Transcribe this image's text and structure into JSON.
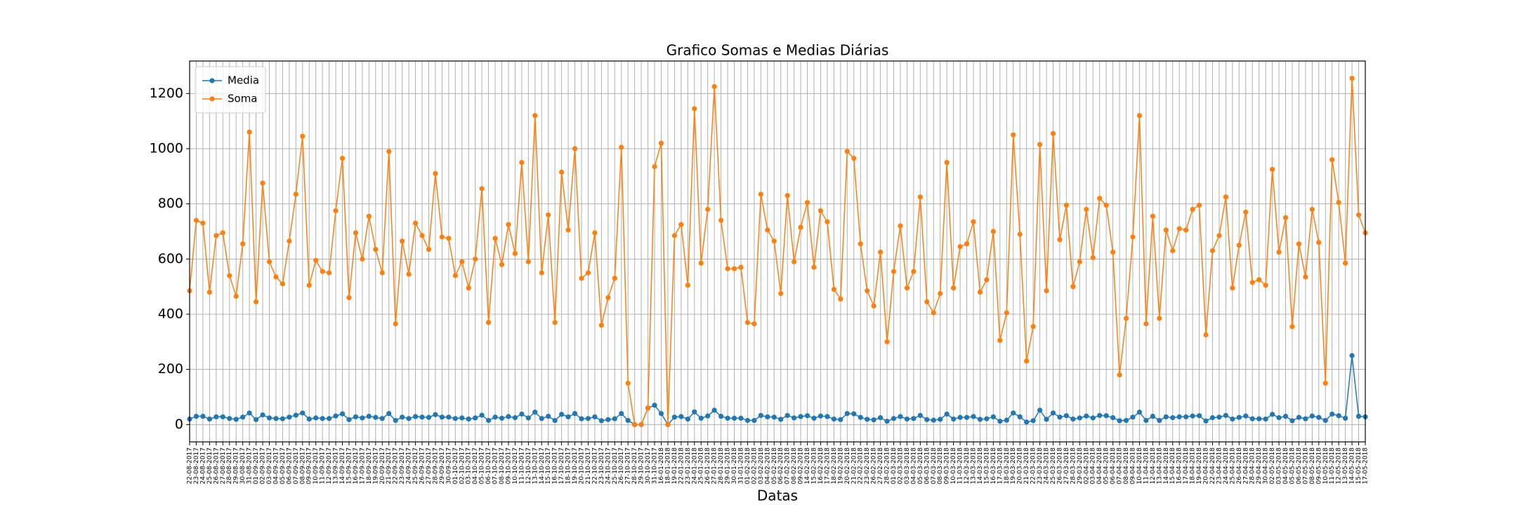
{
  "chart_data": {
    "type": "line",
    "title": "Grafico Somas e Medias Diárias",
    "xlabel": "Datas",
    "categories": [
      "22-08-2017",
      "23-08-2017",
      "24-08-2017",
      "25-08-2017",
      "26-08-2017",
      "27-08-2017",
      "28-08-2017",
      "29-08-2017",
      "30-08-2017",
      "31-08-2017",
      "01-09-2017",
      "02-09-2017",
      "03-09-2017",
      "04-09-2017",
      "05-09-2017",
      "06-09-2017",
      "07-09-2017",
      "08-09-2017",
      "09-09-2017",
      "10-09-2017",
      "11-09-2017",
      "12-09-2017",
      "13-09-2017",
      "14-09-2017",
      "15-09-2017",
      "16-09-2017",
      "17-09-2017",
      "18-09-2017",
      "19-09-2017",
      "20-09-2017",
      "21-09-2017",
      "22-09-2017",
      "23-09-2017",
      "24-09-2017",
      "25-09-2017",
      "26-09-2017",
      "27-09-2017",
      "28-09-2017",
      "29-09-2017",
      "30-09-2017",
      "01-10-2017",
      "02-10-2017",
      "03-10-2017",
      "04-10-2017",
      "05-10-2017",
      "06-10-2017",
      "07-10-2017",
      "08-10-2017",
      "09-10-2017",
      "10-10-2017",
      "11-10-2017",
      "12-10-2017",
      "13-10-2017",
      "14-10-2017",
      "15-10-2017",
      "16-10-2017",
      "17-10-2017",
      "18-10-2017",
      "19-10-2017",
      "20-10-2017",
      "21-10-2017",
      "22-10-2017",
      "23-10-2017",
      "24-10-2017",
      "25-10-2017",
      "26-10-2017",
      "27-10-2017",
      "28-10-2017",
      "29-10-2017",
      "30-10-2017",
      "31-10-2017",
      "16-01-2018",
      "18-01-2018",
      "19-01-2018",
      "22-01-2018",
      "23-01-2018",
      "24-01-2018",
      "25-01-2018",
      "26-01-2018",
      "27-01-2018",
      "28-01-2018",
      "29-01-2018",
      "30-01-2018",
      "31-01-2018",
      "01-02-2018",
      "02-02-2018",
      "03-02-2018",
      "04-02-2018",
      "05-02-2018",
      "06-02-2018",
      "07-02-2018",
      "08-02-2018",
      "09-02-2018",
      "14-02-2018",
      "15-02-2018",
      "16-02-2018",
      "17-02-2018",
      "18-02-2018",
      "19-02-2018",
      "20-02-2018",
      "21-02-2018",
      "22-02-2018",
      "23-02-2018",
      "26-02-2018",
      "27-02-2018",
      "28-02-2018",
      "01-03-2018",
      "02-03-2018",
      "03-03-2018",
      "04-03-2018",
      "05-03-2018",
      "06-03-2018",
      "07-03-2018",
      "08-03-2018",
      "09-03-2018",
      "10-03-2018",
      "11-03-2018",
      "12-03-2018",
      "13-03-2018",
      "14-03-2018",
      "15-03-2018",
      "16-03-2018",
      "17-03-2018",
      "18-03-2018",
      "19-03-2018",
      "20-03-2018",
      "21-03-2018",
      "22-03-2018",
      "23-03-2018",
      "24-03-2018",
      "25-03-2018",
      "26-03-2018",
      "27-03-2018",
      "28-03-2018",
      "29-03-2018",
      "02-04-2018",
      "03-04-2018",
      "04-04-2018",
      "05-04-2018",
      "06-04-2018",
      "07-04-2018",
      "08-04-2018",
      "09-04-2018",
      "10-04-2018",
      "11-04-2018",
      "12-04-2018",
      "13-04-2018",
      "14-04-2018",
      "15-04-2018",
      "16-04-2018",
      "17-04-2018",
      "18-04-2018",
      "19-04-2018",
      "20-04-2018",
      "22-04-2018",
      "23-04-2018",
      "24-04-2018",
      "25-04-2018",
      "26-04-2018",
      "27-04-2018",
      "28-04-2018",
      "29-04-2018",
      "30-04-2018",
      "02-05-2018",
      "03-05-2018",
      "04-05-2018",
      "05-05-2018",
      "06-05-2018",
      "07-05-2018",
      "08-05-2018",
      "09-05-2018",
      "10-05-2018",
      "11-05-2018",
      "12-05-2018",
      "13-05-2018",
      "14-05-2018",
      "15-05-2018",
      "17-05-2018"
    ],
    "series": [
      {
        "name": "Media",
        "color": "#1f77b4",
        "values": [
          20,
          30,
          30,
          20,
          28,
          28,
          22,
          19,
          27,
          42,
          18,
          35,
          24,
          22,
          21,
          27,
          34,
          42,
          20,
          24,
          22,
          22,
          31,
          39,
          18,
          28,
          24,
          30,
          26,
          22,
          40,
          15,
          27,
          22,
          29,
          27,
          26,
          36,
          27,
          27,
          22,
          24,
          20,
          24,
          34,
          15,
          27,
          23,
          29,
          25,
          38,
          24,
          45,
          22,
          30,
          15,
          37,
          28,
          40,
          21,
          22,
          28,
          14,
          18,
          21,
          40,
          15,
          0,
          0,
          60,
          70,
          40,
          0,
          27,
          29,
          20,
          46,
          23,
          31,
          52,
          30,
          23,
          23,
          23,
          15,
          15,
          33,
          28,
          27,
          19,
          33,
          24,
          29,
          32,
          23,
          31,
          29,
          20,
          18,
          40,
          39,
          26,
          19,
          17,
          25,
          12,
          22,
          29,
          20,
          22,
          33,
          18,
          16,
          19,
          38,
          20,
          26,
          26,
          29,
          19,
          21,
          28,
          12,
          16,
          42,
          28,
          9,
          14,
          52,
          19,
          42,
          27,
          32,
          20,
          24,
          31,
          24,
          33,
          32,
          25,
          14,
          15,
          27,
          45,
          15,
          30,
          15,
          28,
          25,
          28,
          28,
          31,
          32,
          13,
          25,
          27,
          33,
          20,
          26,
          31,
          21,
          21,
          20,
          37,
          25,
          30,
          14,
          26,
          21,
          31,
          26,
          15,
          38,
          32,
          23,
          250,
          30,
          28
        ]
      },
      {
        "name": "Soma",
        "color": "#ff7f0e",
        "values": [
          485,
          740,
          730,
          480,
          685,
          695,
          540,
          465,
          655,
          1060,
          445,
          875,
          590,
          535,
          510,
          665,
          835,
          1045,
          505,
          595,
          555,
          550,
          775,
          965,
          460,
          695,
          600,
          755,
          635,
          550,
          990,
          365,
          665,
          545,
          730,
          685,
          635,
          910,
          680,
          675,
          540,
          590,
          495,
          600,
          855,
          370,
          675,
          580,
          725,
          620,
          950,
          590,
          1120,
          550,
          760,
          370,
          915,
          705,
          1000,
          530,
          550,
          695,
          360,
          460,
          530,
          1005,
          150,
          0,
          0,
          60,
          935,
          1020,
          0,
          685,
          725,
          505,
          1145,
          585,
          780,
          1225,
          740,
          565,
          565,
          570,
          370,
          365,
          835,
          705,
          665,
          475,
          830,
          590,
          715,
          805,
          570,
          775,
          735,
          490,
          455,
          990,
          965,
          655,
          485,
          430,
          625,
          300,
          555,
          720,
          495,
          555,
          825,
          445,
          405,
          475,
          950,
          495,
          645,
          655,
          735,
          480,
          525,
          700,
          305,
          405,
          1050,
          690,
          230,
          355,
          1015,
          485,
          1055,
          670,
          795,
          500,
          590,
          780,
          605,
          820,
          795,
          625,
          180,
          385,
          680,
          1120,
          365,
          755,
          385,
          705,
          630,
          710,
          705,
          780,
          795,
          325,
          630,
          685,
          825,
          495,
          650,
          770,
          515,
          525,
          505,
          925,
          625,
          750,
          355,
          655,
          535,
          780,
          660,
          150,
          960,
          805,
          585,
          1255,
          760,
          695
        ]
      }
    ],
    "ylim": [
      -62.75,
      1317.75
    ],
    "yticks": [
      0,
      200,
      400,
      600,
      800,
      1000,
      1200
    ],
    "grid": true,
    "legend": "upper left",
    "marker": true
  }
}
